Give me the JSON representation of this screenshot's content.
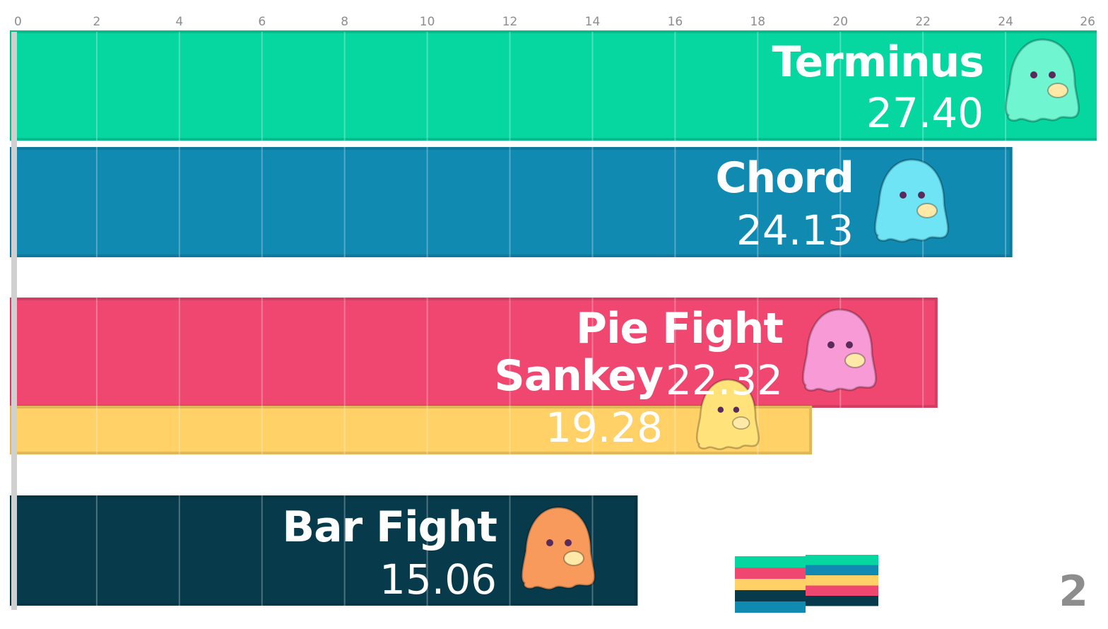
{
  "chart_data": {
    "type": "bar",
    "orientation": "horizontal",
    "xlim": [
      0,
      26
    ],
    "x_ticks": [
      "0",
      "2",
      "4",
      "6",
      "8",
      "10",
      "12",
      "14",
      "16",
      "18",
      "20",
      "22",
      "24",
      "26"
    ],
    "grid": true,
    "categories": [
      "Terminus",
      "Chord",
      "Pie Fight",
      "Sankey",
      "Bar Fight"
    ],
    "values": [
      27.4,
      24.13,
      22.32,
      19.28,
      15.06
    ],
    "value_labels": [
      "27.40",
      "24.13",
      "22.32",
      "19.28",
      "15.06"
    ],
    "colors": [
      "#06d6a0",
      "#118ab2",
      "#ef476f",
      "#ffd166",
      "#073b4c"
    ],
    "mascots": [
      "ghost-popcorn-icon",
      "ghost-soda-icon",
      "ghost-cake-icon",
      "ghost-blob-icon",
      "ghost-boba-icon"
    ],
    "legend": {
      "placement": "bottom-right",
      "left_column_colors": [
        "#06d6a0",
        "#ef476f",
        "#ffd166",
        "#073b4c",
        "#118ab2"
      ],
      "right_column_colors": [
        "#06d6a0",
        "#118ab2",
        "#ffd166",
        "#ef476f",
        "#073b4c"
      ]
    },
    "frame_counter": "2"
  }
}
